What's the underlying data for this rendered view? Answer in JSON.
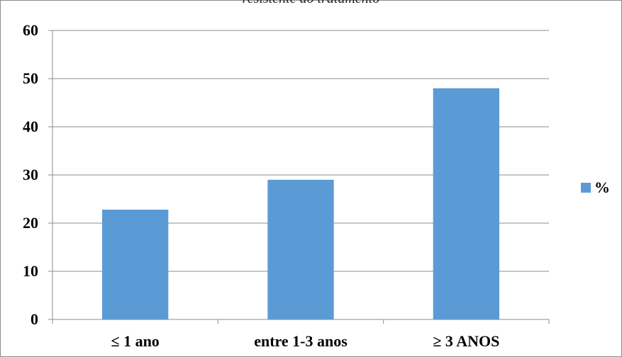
{
  "chart_data": {
    "type": "bar",
    "title": "resistente ao tratamento",
    "categories": [
      "≤ 1 ano",
      "entre 1-3 anos",
      "≥ 3 ANOS"
    ],
    "series": [
      {
        "name": "%",
        "values": [
          22.8,
          29.0,
          48.0
        ]
      }
    ],
    "ylim": [
      0,
      60
    ],
    "yticks": [
      "0",
      "10",
      "20",
      "30",
      "40",
      "50",
      "60"
    ],
    "grid": true,
    "legend_position": "right",
    "bar_color": "#5B9BD5"
  }
}
